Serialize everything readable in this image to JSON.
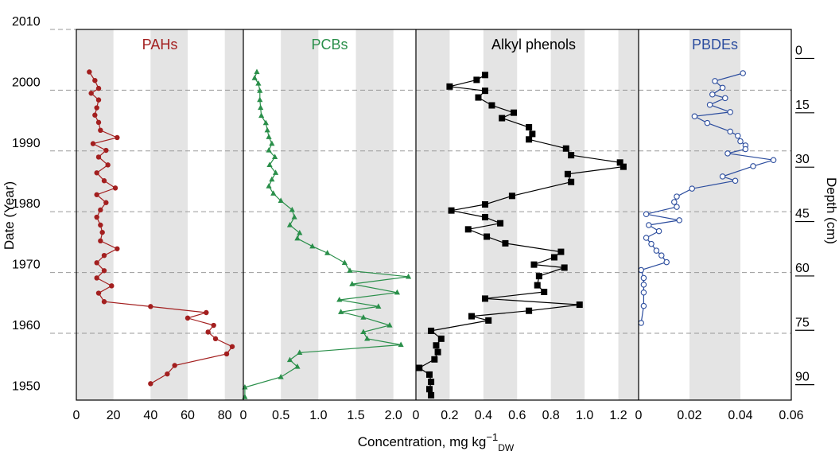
{
  "chart_data": {
    "type": "line",
    "xlabel": "Concentration, mg kg",
    "xlabel_sup": "−1",
    "xlabel_sub": "DW",
    "ylabel_left": "Date (Year)",
    "ylabel_right": "Depth (cm)",
    "date_axis": {
      "range": [
        1950,
        2010
      ],
      "ticks": [
        "2010",
        "2000",
        "1990",
        "1980",
        "1970",
        "1960",
        "1950"
      ]
    },
    "depth_axis": {
      "range": [
        0,
        90
      ],
      "ticks": [
        "0",
        "15",
        "30",
        "45",
        "60",
        "75",
        "90"
      ]
    },
    "dashed_year_lines": [
      2010,
      2000,
      1990,
      1980,
      1970,
      1960
    ],
    "panels": [
      {
        "title": "PAHs",
        "color": "#a31f1f",
        "marker": "circle-filled",
        "xlim": [
          0,
          90
        ],
        "ticks": [
          "0",
          "20",
          "40",
          "60",
          "80"
        ],
        "gray_bands": [
          [
            0,
            20
          ],
          [
            40,
            60
          ],
          [
            80,
            90
          ]
        ],
        "x": [
          7,
          10,
          12,
          8,
          12,
          11,
          10,
          12,
          13,
          22,
          9,
          16,
          12,
          17,
          11,
          15,
          21,
          11,
          16,
          13,
          11,
          13,
          14,
          13,
          22,
          15,
          11,
          15,
          11,
          19,
          12,
          15,
          40,
          70,
          60,
          74,
          71,
          75,
          84,
          81,
          53,
          49,
          40
        ],
        "y": [
          2003,
          2001.6,
          2000.3,
          1999.5,
          1998.4,
          1997.1,
          1995.9,
          1994.7,
          1993.4,
          1992.2,
          1991.2,
          1990.1,
          1989,
          1987.7,
          1986.4,
          1985.1,
          1983.9,
          1982.8,
          1981.5,
          1980.3,
          1979.1,
          1977.8,
          1976.6,
          1975.2,
          1973.9,
          1972.8,
          1971.6,
          1970.3,
          1969.1,
          1967.8,
          1966.6,
          1965.2,
          1964.4,
          1963.4,
          1962.5,
          1961.3,
          1960.2,
          1959.1,
          1957.8,
          1956.6,
          1954.7,
          1953.3,
          1951.7
        ]
      },
      {
        "title": "PCBs",
        "color": "#2a8f4a",
        "marker": "triangle-filled",
        "xlim": [
          0,
          2.3
        ],
        "ticks": [
          "0",
          "0.5",
          "1.0",
          "1.5",
          "2.0"
        ],
        "gray_bands": [
          [
            0.5,
            1.0
          ],
          [
            1.5,
            2.0
          ]
        ],
        "x": [
          0.18,
          0.15,
          0.2,
          0.22,
          0.22,
          0.23,
          0.24,
          0.3,
          0.32,
          0.34,
          0.38,
          0.34,
          0.42,
          0.35,
          0.43,
          0.38,
          0.34,
          0.4,
          0.5,
          0.65,
          0.68,
          0.62,
          0.75,
          0.72,
          0.92,
          1.12,
          1.35,
          1.42,
          2.2,
          1.45,
          2.05,
          1.28,
          1.8,
          1.3,
          1.6,
          1.95,
          1.6,
          1.65,
          2.1,
          0.75,
          0.62,
          0.72,
          0.5,
          0.02,
          0.02
        ],
        "y": [
          2003,
          2002,
          2001.1,
          1999.9,
          1998.4,
          1997.1,
          1995.8,
          1994.6,
          1993.4,
          1992.3,
          1991.2,
          1990.1,
          1989,
          1987.7,
          1986.4,
          1985.3,
          1984.2,
          1983,
          1981.8,
          1980.3,
          1979.1,
          1977.8,
          1976.5,
          1975.6,
          1974.3,
          1973.2,
          1971.6,
          1970.3,
          1969.3,
          1968.1,
          1966.7,
          1965.5,
          1964.4,
          1963.5,
          1962.6,
          1961.3,
          1960.2,
          1959.1,
          1958.1,
          1956.8,
          1955.6,
          1954.5,
          1952.8,
          1951.1,
          1949.5
        ]
      },
      {
        "title": "Alkyl phenols",
        "color": "#000000",
        "marker": "square-filled",
        "xlim": [
          0,
          1.32
        ],
        "ticks": [
          "0",
          "0.2",
          "0.4",
          "0.6",
          "0.8",
          "1.0",
          "1.2"
        ],
        "gray_bands": [
          [
            0,
            0.2
          ],
          [
            0.4,
            0.6
          ],
          [
            0.8,
            1.0
          ],
          [
            1.2,
            1.32
          ]
        ],
        "x": [
          0.41,
          0.36,
          0.2,
          0.41,
          0.37,
          0.45,
          0.58,
          0.51,
          0.67,
          0.69,
          0.67,
          0.89,
          0.92,
          1.21,
          1.23,
          0.9,
          0.92,
          0.57,
          0.41,
          0.21,
          0.41,
          0.5,
          0.31,
          0.42,
          0.53,
          0.86,
          0.82,
          0.7,
          0.88,
          0.73,
          0.72,
          0.76,
          0.41,
          0.97,
          0.67,
          0.33,
          0.43,
          0.09,
          0.15,
          0.12,
          0.13,
          0.11,
          0.02,
          0.08,
          0.09,
          0.08,
          0.09
        ],
        "y": [
          2002.5,
          2001.7,
          2000.6,
          1999.9,
          1998.8,
          1997.5,
          1996.3,
          1995.4,
          1993.9,
          1992.8,
          1991.9,
          1990.4,
          1989.3,
          1988.1,
          1987.4,
          1986.2,
          1984.9,
          1982.6,
          1981.2,
          1980.2,
          1979.1,
          1978.1,
          1977.1,
          1975.9,
          1974.8,
          1973.4,
          1972.5,
          1971.3,
          1970.8,
          1969.4,
          1967.9,
          1966.8,
          1965.7,
          1964.7,
          1963.7,
          1962.8,
          1962.1,
          1960.4,
          1959.1,
          1958,
          1956.9,
          1955.7,
          1954.3,
          1953.2,
          1952,
          1950.8,
          1949.8
        ]
      },
      {
        "title": "PBDEs",
        "color": "#2c4d9e",
        "marker": "circle-open",
        "xlim": [
          0,
          0.06
        ],
        "ticks": [
          "0",
          "0.02",
          "0.04",
          "0.06"
        ],
        "gray_bands": [
          [
            0.02,
            0.04
          ]
        ],
        "x": [
          0.041,
          0.03,
          0.033,
          0.029,
          0.034,
          0.028,
          0.036,
          0.022,
          0.027,
          0.036,
          0.039,
          0.04,
          0.042,
          0.042,
          0.035,
          0.053,
          0.045,
          0.033,
          0.038,
          0.021,
          0.015,
          0.014,
          0.015,
          0.003,
          0.016,
          0.004,
          0.008,
          0.003,
          0.005,
          0.007,
          0.009,
          0.011,
          0.001,
          0.002,
          0.002,
          0.002,
          0.002,
          0.001
        ],
        "y": [
          2002.8,
          2001.5,
          2000.4,
          1999.3,
          1998.7,
          1997.6,
          1996.4,
          1995.7,
          1994.6,
          1993.2,
          1992.5,
          1991.6,
          1990.9,
          1990.3,
          1989.6,
          1988.5,
          1987.5,
          1985.8,
          1985.1,
          1983.8,
          1982.5,
          1981.6,
          1980.8,
          1979.6,
          1978.6,
          1977.8,
          1976.8,
          1975.7,
          1974.7,
          1973.6,
          1972.8,
          1971.7,
          1970.4,
          1969.1,
          1968,
          1966.7,
          1964.5,
          1961.7
        ]
      }
    ]
  }
}
